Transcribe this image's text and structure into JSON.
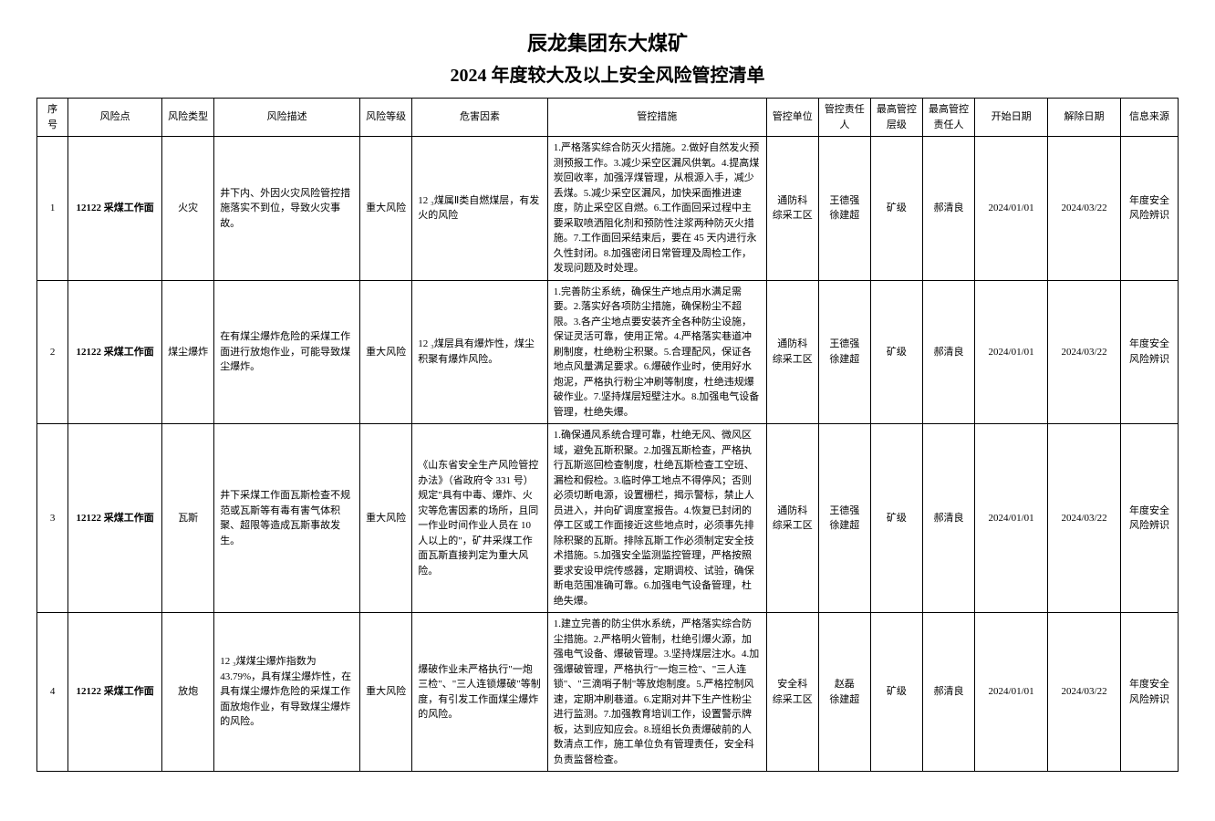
{
  "title_main": "辰龙集团东大煤矿",
  "title_sub": "2024 年度较大及以上安全风险管控清单",
  "headers": {
    "seq": "序号",
    "point": "风险点",
    "type": "风险类型",
    "desc": "风险描述",
    "level": "风险等级",
    "hazard": "危害因素",
    "measure": "管控措施",
    "unit": "管控单位",
    "person": "管控责任人",
    "ctrl_level": "最高管控层级",
    "ctrl_person": "最高管控责任人",
    "start": "开始日期",
    "end": "解除日期",
    "source": "信息来源"
  },
  "rows": [
    {
      "seq": "1",
      "point": "12122 采煤工作面",
      "type": "火灾",
      "desc": "井下内、外因火灾风险管控措施落实不到位，导致火灾事故。",
      "level": "重大风险",
      "hazard": "12 ₃煤属Ⅱ类自燃煤层，有发火的风险",
      "measure": "1.严格落实综合防灭火措施。2.做好自然发火预测预报工作。3.减少采空区漏风供氧。4.提高煤炭回收率，加强浮煤管理，从根源入手，减少丢煤。5.减少采空区漏风，加快采面推进速度，防止采空区自燃。6.工作面回采过程中主要采取喷洒阻化剂和预防性注浆两种防灭火措施。7.工作面回采结束后，要在 45 天内进行永久性封闭。8.加强密闭日常管理及周检工作，发现问题及时处理。",
      "unit": "通防科\n综采工区",
      "person": "王德强\n徐建超",
      "ctrl_level": "矿级",
      "ctrl_person": "郝清良",
      "start": "2024/01/01",
      "end": "2024/03/22",
      "source": "年度安全风险辨识"
    },
    {
      "seq": "2",
      "point": "12122 采煤工作面",
      "type": "煤尘爆炸",
      "desc": "在有煤尘爆炸危险的采煤工作面进行放炮作业，可能导致煤尘爆炸。",
      "level": "重大风险",
      "hazard": "12 ₃煤层具有爆炸性，煤尘积聚有爆炸风险。",
      "measure": "1.完善防尘系统，确保生产地点用水满足需要。2.落实好各项防尘措施，确保粉尘不超限。3.各产尘地点要安装齐全各种防尘设施，保证灵活可靠，使用正常。4.严格落实巷道冲刷制度，杜绝粉尘积聚。5.合理配风，保证各地点风量满足要求。6.爆破作业时，使用好水炮泥，严格执行粉尘冲刷等制度，杜绝违规爆破作业。7.坚持煤层短壁注水。8.加强电气设备管理，杜绝失爆。",
      "unit": "通防科\n综采工区",
      "person": "王德强\n徐建超",
      "ctrl_level": "矿级",
      "ctrl_person": "郝清良",
      "start": "2024/01/01",
      "end": "2024/03/22",
      "source": "年度安全风险辨识"
    },
    {
      "seq": "3",
      "point": "12122 采煤工作面",
      "type": "瓦斯",
      "desc": "井下采煤工作面瓦斯检查不规范或瓦斯等有毒有害气体积聚、超限等造成瓦斯事故发生。",
      "level": "重大风险",
      "hazard": "《山东省安全生产风险管控办法》（省政府令 331 号）规定\"具有中毒、爆炸、火灾等危害因素的场所，且同一作业时间作业人员在 10 人以上的\"，矿井采煤工作面瓦斯直接判定为重大风险。",
      "measure": "1.确保通风系统合理可靠，杜绝无风、微风区域，避免瓦斯积聚。2.加强瓦斯检查，严格执行瓦斯巡回检查制度，杜绝瓦斯检查工空班、漏检和假检。3.临时停工地点不得停风；否则必须切断电源，设置栅栏，揭示警标，禁止人员进入，并向矿调度室报告。4.恢复已封闭的停工区或工作面接近这些地点时，必须事先排除积聚的瓦斯。排除瓦斯工作必须制定安全技术措施。5.加强安全监测监控管理，严格按照要求安设甲烷传感器，定期调校、试验，确保断电范围准确可靠。6.加强电气设备管理，杜绝失爆。",
      "unit": "通防科\n综采工区",
      "person": "王德强\n徐建超",
      "ctrl_level": "矿级",
      "ctrl_person": "郝清良",
      "start": "2024/01/01",
      "end": "2024/03/22",
      "source": "年度安全风险辨识"
    },
    {
      "seq": "4",
      "point": "12122 采煤工作面",
      "type": "放炮",
      "desc": "12 ₃煤煤尘爆炸指数为 43.79%，具有煤尘爆炸性，在具有煤尘爆炸危险的采煤工作面放炮作业，有导致煤尘爆炸的风险。",
      "level": "重大风险",
      "hazard": "爆破作业未严格执行\"一炮三检\"、\"三人连锁爆破\"等制度，有引发工作面煤尘爆炸的风险。",
      "measure": "1.建立完善的防尘供水系统，严格落实综合防尘措施。2.严格明火管制，杜绝引爆火源，加强电气设备、爆破管理。3.坚持煤层注水。4.加强爆破管理，严格执行\"一炮三检\"、\"三人连锁\"、\"三滴哨子制\"等放炮制度。5.严格控制风速，定期冲刷巷道。6.定期对井下生产性粉尘进行监测。7.加强教育培训工作，设置警示牌板，达到应知应会。8.班组长负责爆破前的人数清点工作，施工单位负有管理责任，安全科负责监督检查。",
      "unit": "安全科\n综采工区",
      "person": "赵磊\n徐建超",
      "ctrl_level": "矿级",
      "ctrl_person": "郝清良",
      "start": "2024/01/01",
      "end": "2024/03/22",
      "source": "年度安全风险辨识"
    }
  ]
}
